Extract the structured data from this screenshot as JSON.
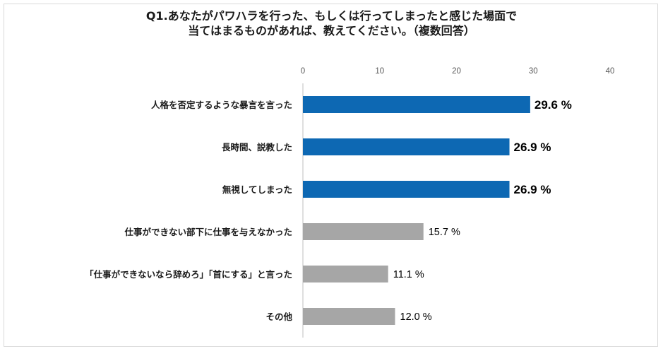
{
  "chart_data": {
    "type": "bar",
    "orientation": "horizontal",
    "title": [
      "Q1.あなたがパワハラを行った、もしくは行ってしまったと感じた場面で",
      "当てはまるものがあれば、教えてください。（複数回答）"
    ],
    "xlim": [
      0,
      40
    ],
    "xticks": [
      "0",
      "10",
      "20",
      "30",
      "40"
    ],
    "grid": false,
    "categories": [
      "人格を否定するような暴言を言った",
      "長時間、説教した",
      "無視してしまった",
      "仕事ができない部下に仕事を与えなかった",
      "「仕事ができないなら辞めろ」「首にする」と言った",
      "その他"
    ],
    "values": [
      29.6,
      26.9,
      26.9,
      15.7,
      11.1,
      12.0
    ],
    "value_labels": [
      "29.6 %",
      "26.9 %",
      "26.9 %",
      "15.7 %",
      "11.1 %",
      "12.0 %"
    ],
    "highlighted": [
      true,
      true,
      true,
      false,
      false,
      false
    ],
    "colors": {
      "highlight": "#0d68b3",
      "normal": "#a6a6a6",
      "axis": "#bfbfbf"
    }
  }
}
